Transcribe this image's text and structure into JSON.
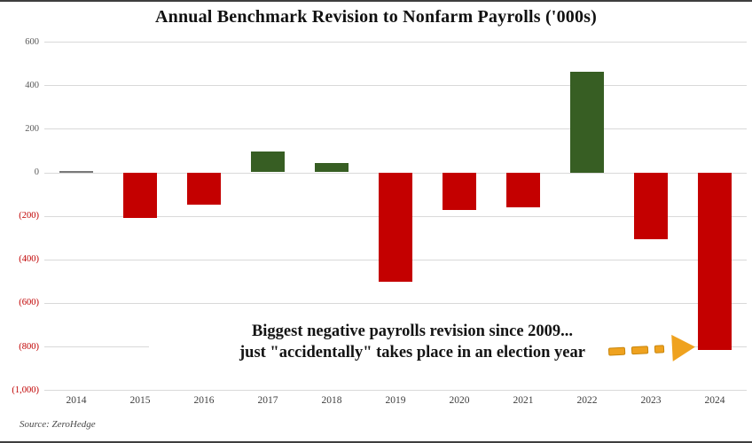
{
  "chart_data": {
    "type": "bar",
    "title": "Annual Benchmark Revision to Nonfarm Payrolls ('000s)",
    "categories": [
      "2014",
      "2015",
      "2016",
      "2017",
      "2018",
      "2019",
      "2020",
      "2021",
      "2022",
      "2023",
      "2024"
    ],
    "values": [
      7,
      -208,
      -150,
      95,
      43,
      -501,
      -173,
      -161,
      462,
      -306,
      -818
    ],
    "bar_colors": [
      "#7a7a7a",
      "#c40000",
      "#c40000",
      "#375e23",
      "#375e23",
      "#c40000",
      "#c40000",
      "#c40000",
      "#375e23",
      "#c40000",
      "#c40000"
    ],
    "ylim": [
      -1000,
      600
    ],
    "yticks": [
      600,
      400,
      200,
      0,
      -200,
      -400,
      -600,
      -800,
      -1000
    ],
    "ytick_labels": [
      "600",
      "400",
      "200",
      "0",
      "(200)",
      "(400)",
      "(600)",
      "(800)",
      "(1,000)"
    ],
    "grid": "horizontal",
    "legend": "none",
    "colors": {
      "negative_bar": "#c40000",
      "positive_bar": "#375e23",
      "near_zero_bar": "#7a7a7a",
      "negative_tick_text": "#c00000",
      "positive_tick_text": "#595959",
      "gridline": "#d9d9d9",
      "arrow": "#efa21f"
    },
    "annotation": {
      "line1": "Biggest negative payrolls revision since 2009...",
      "line2": "just \"accidentally\" takes place in an election year"
    },
    "source": "Source: ZeroHedge"
  }
}
